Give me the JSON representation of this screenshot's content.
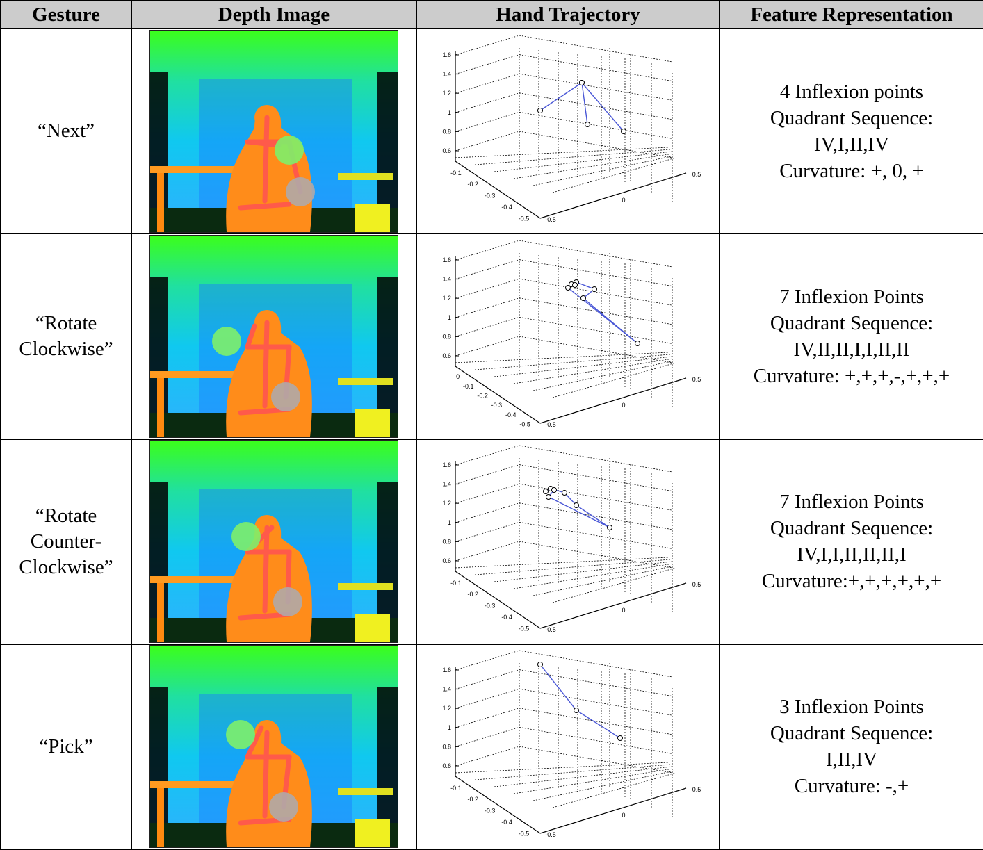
{
  "headers": {
    "gesture": "Gesture",
    "depth_image": "Depth Image",
    "hand_trajectory": "Hand Trajectory",
    "feature_representation": "Feature Representation"
  },
  "rows": [
    {
      "gesture_lines": [
        "“Next”"
      ],
      "feature_lines": [
        "4 Inflexion points",
        "Quadrant Sequence:",
        "IV,I,II,IV",
        "Curvature: +, 0, +"
      ],
      "z_ticks": [
        "1.6",
        "1.4",
        "1.2",
        "1",
        "0.8",
        "0.6"
      ],
      "y_ticks": [
        "-0.1",
        "-0.2",
        "-0.3",
        "-0.4",
        "-0.5"
      ],
      "x_ticks": [
        "0.5",
        "0",
        "-0.5"
      ]
    },
    {
      "gesture_lines": [
        "“Rotate",
        "Clockwise”"
      ],
      "feature_lines": [
        "7 Inflexion Points",
        "Quadrant Sequence:",
        "IV,II,II,I,I,II,II",
        "Curvature: +,+,+,-,+,+,+"
      ],
      "z_ticks": [
        "1.6",
        "1.4",
        "1.2",
        "1",
        "0.8",
        "0.6"
      ],
      "y_ticks": [
        "0",
        "-0.1",
        "-0.2",
        "-0.3",
        "-0.4",
        "-0.5"
      ],
      "x_ticks": [
        "0.5",
        "0",
        "-0.5"
      ]
    },
    {
      "gesture_lines": [
        "“Rotate",
        "Counter-",
        "Clockwise”"
      ],
      "feature_lines": [
        "7 Inflexion Points",
        "Quadrant Sequence:",
        "IV,I,I,II,II,II,I",
        "Curvature:+,+,+,+,+,+"
      ],
      "z_ticks": [
        "1.6",
        "1.4",
        "1.2",
        "1",
        "0.8",
        "0.6"
      ],
      "y_ticks": [
        "-0.1",
        "-0.2",
        "-0.3",
        "-0.4",
        "-0.5"
      ],
      "x_ticks": [
        "0.5",
        "0",
        "-0.5"
      ]
    },
    {
      "gesture_lines": [
        "“Pick”"
      ],
      "feature_lines": [
        "3 Inflexion Points",
        "Quadrant Sequence:",
        "I,II,IV",
        "Curvature: -,+"
      ],
      "z_ticks": [
        "1.6",
        "1.4",
        "1.2",
        "1",
        "0.8",
        "0.6"
      ],
      "y_ticks": [
        "-0.1",
        "-0.2",
        "-0.3",
        "-0.4",
        "-0.5"
      ],
      "x_ticks": [
        "0.5",
        "0",
        "-0.5"
      ]
    }
  ],
  "colors": {
    "header_bg": "#cccccc",
    "trajectory_line": "#4a57d6",
    "skeleton": "#ff5a4a",
    "body": "#ff8c1a",
    "hand_highlight": "#7ef06a",
    "hand_idle": "#b0a8a8"
  }
}
